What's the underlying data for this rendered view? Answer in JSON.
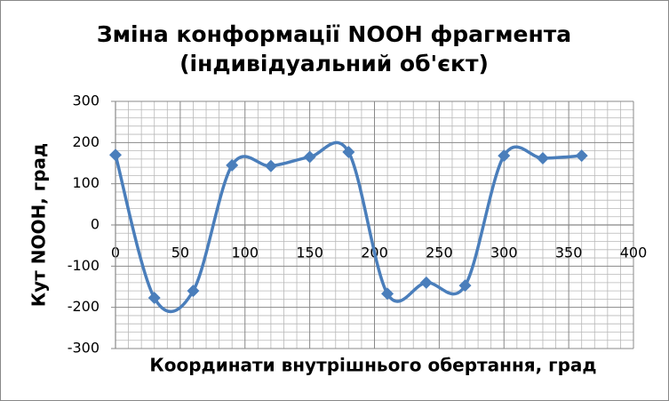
{
  "chart_data": {
    "type": "scatter",
    "title": [
      "Зміна конформації NOOH фрагмента",
      "(індивідуальний об'єкт)"
    ],
    "x_label": "Координати внутрішнього обертання, град",
    "y_label": "Кут NOOH, град",
    "series": [
      {
        "name": "NOOH",
        "color": "#4a7ebb",
        "x": [
          0,
          30,
          60,
          90,
          120,
          150,
          180,
          210,
          240,
          270,
          300,
          330,
          360
        ],
        "values": [
          170,
          -177,
          -160,
          145,
          143,
          165,
          177,
          -167,
          -140,
          -147,
          168,
          162,
          168
        ]
      }
    ],
    "smooth": true,
    "xlim": [
      0,
      400
    ],
    "xticks": [
      0,
      50,
      100,
      150,
      200,
      250,
      300,
      350,
      400
    ],
    "ylim": [
      -300,
      300
    ],
    "yticks": [
      -300,
      -200,
      -100,
      0,
      100,
      200,
      300
    ],
    "grid": true
  }
}
